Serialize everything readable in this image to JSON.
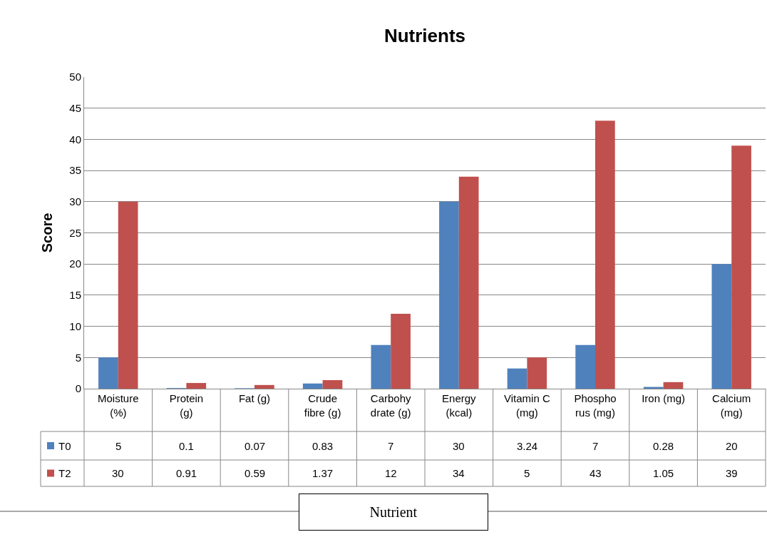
{
  "chart_data": {
    "type": "bar",
    "title": "Nutrients",
    "annotations": [
      "Nutrient"
    ],
    "ylabel": "Score",
    "legend": "bottom left",
    "categories": [
      "Moisture (%)",
      "Protein (g)",
      "Fat (g)",
      "Crude fibre (g)",
      "Carbohy drate (g)",
      "Energy (kcal)",
      "Vitamin C (mg)",
      "Phospho rus (mg)",
      "Iron (mg)",
      "Calcium (mg)"
    ],
    "series": [
      {
        "name": "T0",
        "color": "#4f81bd",
        "values": [
          5,
          0.1,
          0.07,
          0.83,
          7,
          30,
          3.24,
          7,
          0.28,
          20
        ]
      },
      {
        "name": "T2",
        "color": "#c0504d",
        "values": [
          30,
          0.91,
          0.59,
          1.37,
          12,
          34,
          5,
          43,
          1.05,
          39
        ]
      }
    ],
    "ylim": [
      0,
      50
    ],
    "yticks": [
      0,
      5,
      10,
      15,
      20,
      25,
      30,
      35,
      40,
      45,
      50
    ],
    "grid": "y",
    "data_labels": true
  }
}
